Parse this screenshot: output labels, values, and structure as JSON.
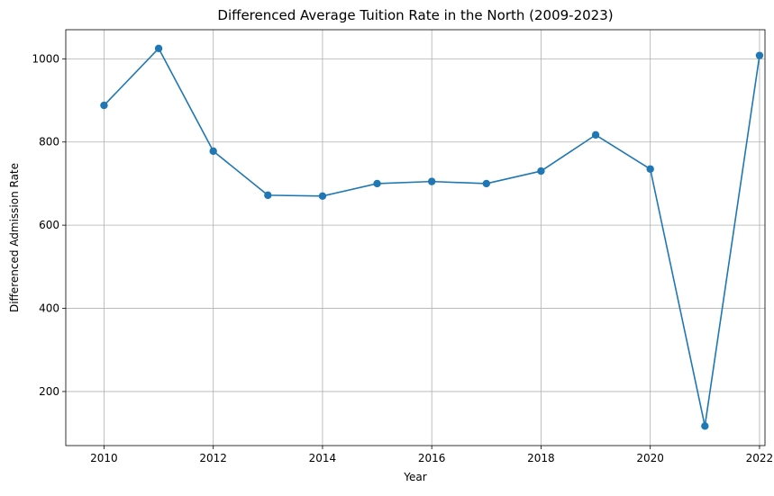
{
  "chart_data": {
    "type": "line",
    "title": "Differenced Average Tuition Rate in the North (2009-2023)",
    "xlabel": "Year",
    "ylabel": "Differenced Admission Rate",
    "xlim": [
      2009.3,
      2022.1
    ],
    "ylim": [
      70,
      1070
    ],
    "xticks": [
      2010,
      2012,
      2014,
      2016,
      2018,
      2020,
      2022
    ],
    "yticks": [
      200,
      400,
      600,
      800,
      1000
    ],
    "grid": true,
    "series": [
      {
        "color": "#1f77b4",
        "marker": "circle",
        "x": [
          2010,
          2011,
          2012,
          2013,
          2014,
          2015,
          2016,
          2017,
          2018,
          2019,
          2020,
          2021,
          2022
        ],
        "y": [
          888,
          1025,
          778,
          672,
          670,
          700,
          705,
          700,
          730,
          817,
          735,
          117,
          1008
        ]
      }
    ]
  }
}
